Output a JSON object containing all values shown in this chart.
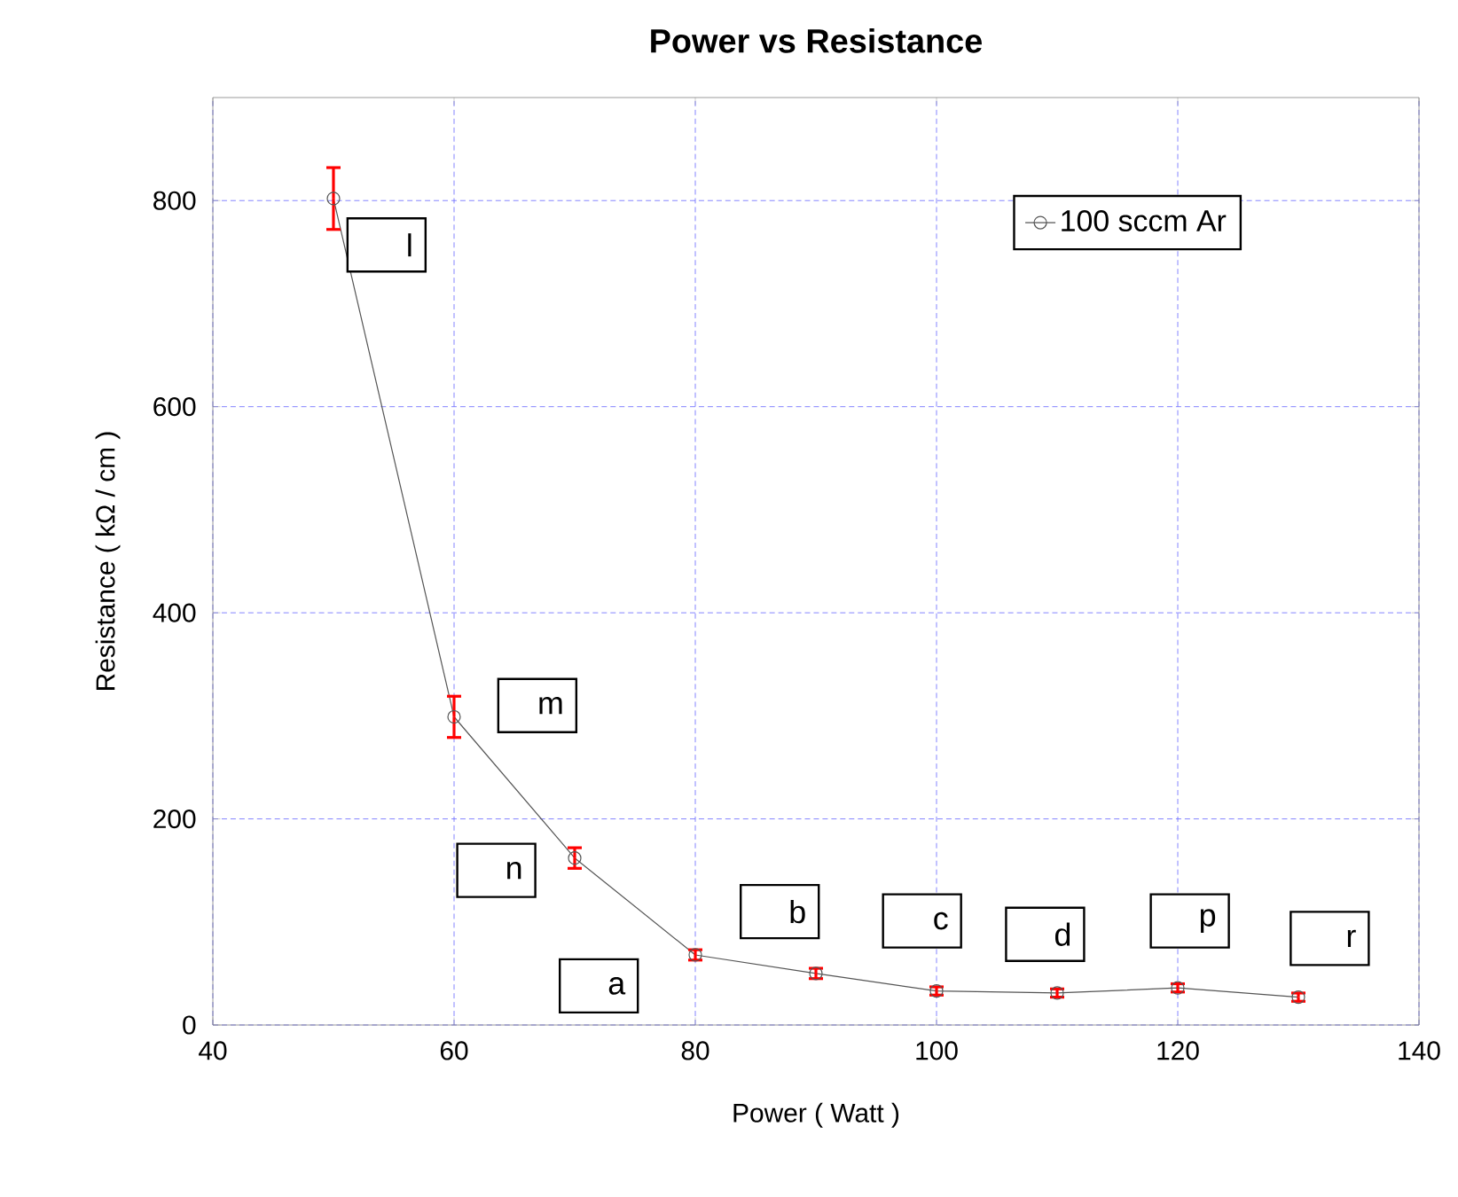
{
  "chart_data": {
    "type": "line",
    "title": "Power vs Resistance",
    "xlabel": "Power ( Watt )",
    "ylabel": "Resistance ( kΩ / cm )",
    "x": [
      50,
      60,
      70,
      80,
      90,
      100,
      110,
      120,
      130
    ],
    "series": [
      {
        "name": "100 sccm Ar",
        "color": "#555555",
        "values": [
          802,
          299,
          162,
          68,
          50,
          33,
          31,
          36,
          27
        ],
        "errors": [
          30,
          20,
          10,
          5,
          5,
          4,
          4,
          4,
          4
        ]
      }
    ],
    "xlim": [
      40,
      140
    ],
    "xticks": [
      40,
      60,
      80,
      100,
      120,
      140
    ],
    "ylim": [
      0,
      900
    ],
    "yticks": [
      0,
      200,
      400,
      600,
      800
    ],
    "grid": true,
    "legend": "top right",
    "marker": "circle",
    "line_style": "solid",
    "annotations": [
      {
        "text": "l",
        "x": 54.4,
        "y": 757
      },
      {
        "text": "m",
        "x": 66.9,
        "y": 310
      },
      {
        "text": "n",
        "x": 63.5,
        "y": 150
      },
      {
        "text": "a",
        "x": 72,
        "y": 38
      },
      {
        "text": "b",
        "x": 87,
        "y": 110
      },
      {
        "text": "c",
        "x": 98.8,
        "y": 101
      },
      {
        "text": "d",
        "x": 109,
        "y": 88
      },
      {
        "text": "p",
        "x": 121,
        "y": 101
      },
      {
        "text": "r",
        "x": 132.6,
        "y": 84
      }
    ]
  }
}
